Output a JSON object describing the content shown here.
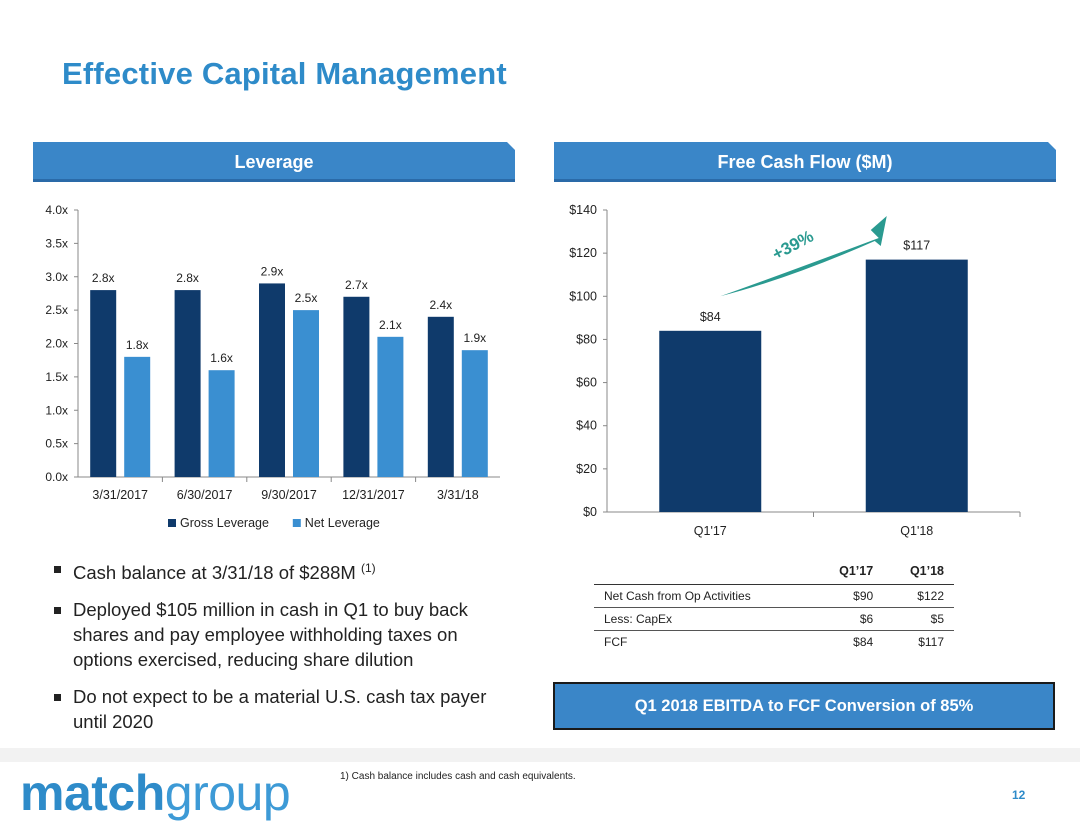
{
  "page": {
    "title": "Effective Capital Management",
    "footnote": "1) Cash balance includes cash and cash equivalents.",
    "page_number": "12",
    "logo_text_bold": "match",
    "logo_text_light": "group"
  },
  "colors": {
    "brand_blue": "#2e8bc9",
    "header_blue": "#3a86c8",
    "gross_bar": "#0f3a6b",
    "net_bar": "#3a8fd1",
    "fcf_bar": "#0f3a6b",
    "arrow_teal": "#2a9a90"
  },
  "leverage": {
    "header": "Leverage"
  },
  "fcf": {
    "header": "Free Cash Flow ($M)",
    "growth_label": "+39%"
  },
  "bullets": {
    "b1_text": "Cash balance at 3/31/18 of $288M",
    "b1_sup": "(1)",
    "b2_text": "Deployed $105 million in cash in Q1 to buy back shares and pay employee withholding taxes on options exercised, reducing share dilution",
    "b3_text": "Do not expect to be a material U.S. cash tax payer until 2020"
  },
  "table": {
    "col1": "Q1’17",
    "col2": "Q1’18",
    "rows": [
      {
        "label": "Net Cash from Op Activities",
        "q17": "$90",
        "q18": "$122"
      },
      {
        "label": "Less: CapEx",
        "q17": "$6",
        "q18": "$5"
      },
      {
        "label": "FCF",
        "q17": "$84",
        "q18": "$117"
      }
    ]
  },
  "callout": {
    "text": "Q1 2018 EBITDA to FCF Conversion of 85%"
  },
  "chart_data": [
    {
      "type": "bar",
      "categories": [
        "3/31/2017",
        "6/30/2017",
        "9/30/2017",
        "12/31/2017",
        "3/31/18"
      ],
      "series": [
        {
          "name": "Gross Leverage",
          "values": [
            2.8,
            2.8,
            2.9,
            2.7,
            2.4
          ],
          "labels": [
            "2.8x",
            "2.8x",
            "2.9x",
            "2.7x",
            "2.4x"
          ]
        },
        {
          "name": "Net Leverage",
          "values": [
            1.8,
            1.6,
            2.5,
            2.1,
            1.9
          ],
          "labels": [
            "1.8x",
            "1.6x",
            "2.5x",
            "2.1x",
            "1.9x"
          ]
        }
      ],
      "ylim": [
        0,
        4.0
      ],
      "yticks": [
        0,
        0.5,
        1.0,
        1.5,
        2.0,
        2.5,
        3.0,
        3.5,
        4.0
      ],
      "ytick_labels": [
        "0.0x",
        "0.5x",
        "1.0x",
        "1.5x",
        "2.0x",
        "2.5x",
        "3.0x",
        "3.5x",
        "4.0x"
      ],
      "legend": "bottom",
      "grid": false
    },
    {
      "type": "bar",
      "categories": [
        "Q1'17",
        "Q1'18"
      ],
      "values": [
        84,
        117
      ],
      "labels": [
        "$84",
        "$117"
      ],
      "ylim": [
        0,
        140
      ],
      "yticks": [
        0,
        20,
        40,
        60,
        80,
        100,
        120,
        140
      ],
      "ytick_labels": [
        "$0",
        "$20",
        "$40",
        "$60",
        "$80",
        "$100",
        "$120",
        "$140"
      ],
      "annotation": "+39%",
      "grid": false
    }
  ]
}
